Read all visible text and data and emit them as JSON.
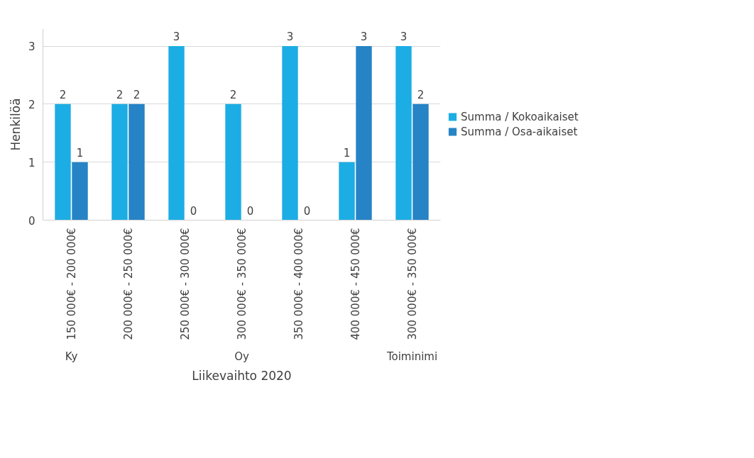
{
  "chart_data": {
    "type": "bar",
    "xlabel": "Liikevaihto 2020",
    "ylabel": "Henkilöä",
    "categories": [
      "150 000€ - 200 000€",
      "200 000€ - 250 000€",
      "250 000€ - 300 000€",
      "300 000€ - 350 000€",
      "350 000€ - 400 000€",
      "400 000€ - 450 000€",
      "300 000€ - 350 000€"
    ],
    "series": [
      {
        "name": "Summa / Kokoaikaiset",
        "color": "#1cade4",
        "values": [
          2,
          2,
          3,
          2,
          3,
          1,
          3
        ]
      },
      {
        "name": "Summa / Osa-aikaiset",
        "color": "#2683c6",
        "values": [
          1,
          2,
          0,
          0,
          0,
          3,
          2
        ]
      }
    ],
    "annotations": [
      "Ky",
      "Oy",
      "Toiminimi"
    ],
    "ylim": [
      0,
      3.3
    ],
    "yticks": [
      0,
      1,
      2,
      3
    ],
    "grid": "y",
    "legend": "right",
    "data_labels": true
  }
}
